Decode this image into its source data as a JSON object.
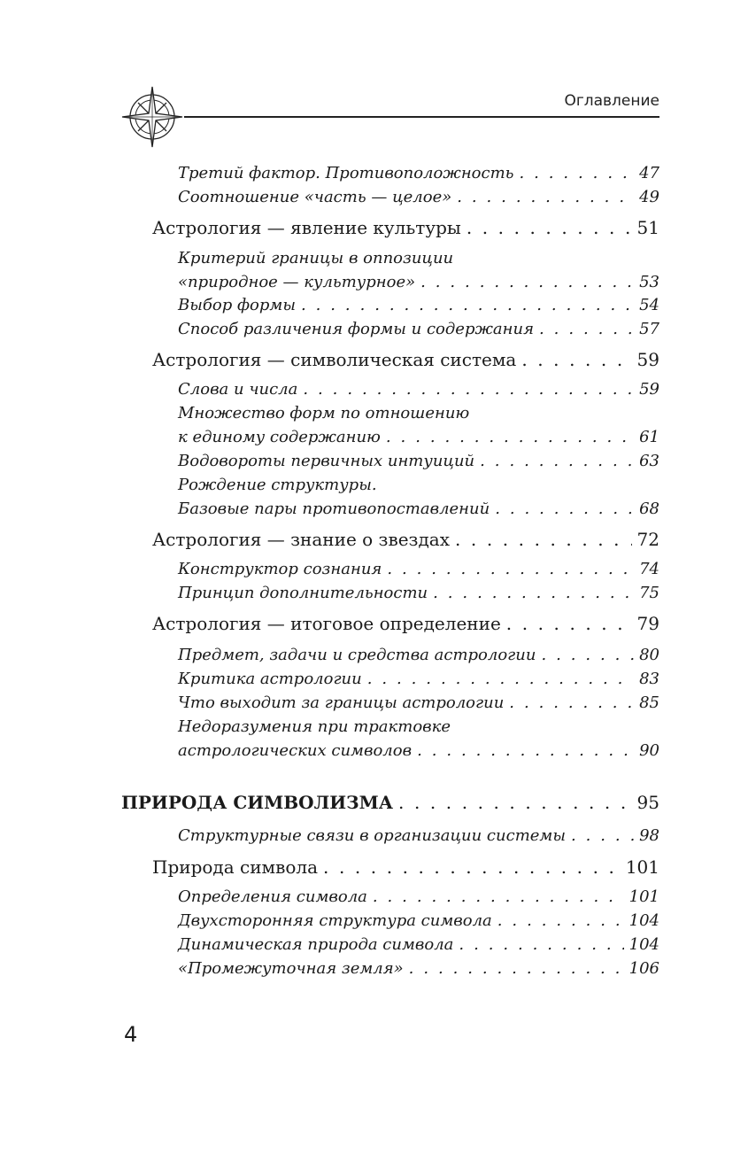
{
  "header": {
    "running_head": "Оглавление",
    "icon": "compass-rose-icon"
  },
  "entries": [
    {
      "level": 2,
      "lines": [
        "Третий фактор. Противоположность"
      ],
      "page": "47"
    },
    {
      "level": 2,
      "lines": [
        "Соотношение «часть — целое»"
      ],
      "page": "49"
    },
    {
      "level": 1,
      "lines": [
        "Астрология — явление культуры"
      ],
      "page": "51"
    },
    {
      "level": 2,
      "lines": [
        "Критерий границы в оппозиции",
        "«природное — культурное»"
      ],
      "page": "53"
    },
    {
      "level": 2,
      "lines": [
        "Выбор формы"
      ],
      "page": "54"
    },
    {
      "level": 2,
      "lines": [
        "Способ различения формы и содержания"
      ],
      "page": "57"
    },
    {
      "level": 1,
      "lines": [
        "Астрология — символическая система"
      ],
      "page": "59"
    },
    {
      "level": 2,
      "lines": [
        "Слова и числа"
      ],
      "page": "59"
    },
    {
      "level": 2,
      "lines": [
        "Множество форм по отношению",
        "к единому содержанию"
      ],
      "page": "61"
    },
    {
      "level": 2,
      "lines": [
        "Водовороты первичных интуиций"
      ],
      "page": "63"
    },
    {
      "level": 2,
      "lines": [
        "Рождение структуры.",
        "Базовые пары противопоставлений"
      ],
      "page": "68"
    },
    {
      "level": 1,
      "lines": [
        "Астрология — знание о звездах"
      ],
      "page": "72"
    },
    {
      "level": 2,
      "lines": [
        "Конструктор сознания"
      ],
      "page": "74"
    },
    {
      "level": 2,
      "lines": [
        "Принцип дополнительности"
      ],
      "page": "75"
    },
    {
      "level": 1,
      "lines": [
        "Астрология — итоговое определение"
      ],
      "page": "79"
    },
    {
      "level": 2,
      "lines": [
        "Предмет, задачи и средства астрологии"
      ],
      "page": "80"
    },
    {
      "level": 2,
      "lines": [
        "Критика астрологии"
      ],
      "page": "83"
    },
    {
      "level": 2,
      "lines": [
        "Что выходит за границы астрологии"
      ],
      "page": "85"
    },
    {
      "level": 2,
      "lines": [
        "Недоразумения при трактовке",
        "астрологических символов"
      ],
      "page": "90"
    },
    {
      "level": 0,
      "lines": [
        "ПРИРОДА СИМВОЛИЗМА"
      ],
      "page": "95"
    },
    {
      "level": 2,
      "lines": [
        "Структурные связи в организации системы"
      ],
      "page": "98"
    },
    {
      "level": 1,
      "lines": [
        "Природа символа"
      ],
      "page": "101"
    },
    {
      "level": 2,
      "lines": [
        "Определения символа"
      ],
      "page": "101"
    },
    {
      "level": 2,
      "lines": [
        "Двухсторонняя структура символа"
      ],
      "page": "104"
    },
    {
      "level": 2,
      "lines": [
        "Динамическая природа символа"
      ],
      "page": "104"
    },
    {
      "level": 2,
      "lines": [
        "«Промежуточная земля»"
      ],
      "page": "106"
    }
  ],
  "footer": {
    "page_number": "4"
  }
}
